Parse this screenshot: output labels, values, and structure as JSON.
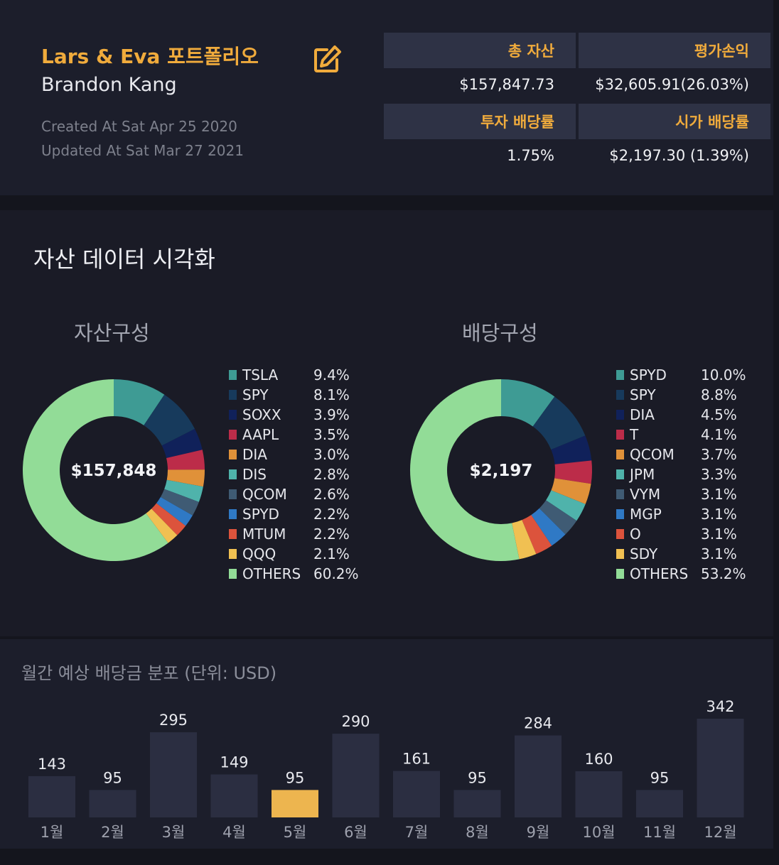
{
  "header": {
    "title": "Lars & Eva 포트폴리오",
    "owner": "Brandon Kang",
    "created": "Created At Sat Apr 25 2020",
    "updated": "Updated At Sat Mar 27 2021",
    "edit_icon": "edit-icon"
  },
  "stats": {
    "total_assets_label": "총 자산",
    "total_assets_value": "$157,847.73",
    "pnl_label": "평가손익",
    "pnl_value": "$32,605.91(26.03%)",
    "invest_div_label": "투자 배당률",
    "invest_div_value": "1.75%",
    "market_div_label": "시가 배당률",
    "market_div_value": "$2,197.30 (1.39%)"
  },
  "section_title": "자산 데이터 시각화",
  "colors": {
    "accent": "#f0ab3c",
    "palette": [
      "#3e9b94",
      "#173a5c",
      "#10215a",
      "#bc2c49",
      "#e09139",
      "#4fb3ab",
      "#3f5b74",
      "#2f79c5",
      "#dc533c",
      "#f0c052",
      "#92dc97"
    ]
  },
  "chart_data": [
    {
      "type": "pie",
      "title": "자산구성",
      "center_label": "$157,848",
      "labels": [
        "TSLA",
        "SPY",
        "SOXX",
        "AAPL",
        "DIA",
        "DIS",
        "QCOM",
        "SPYD",
        "MTUM",
        "QQQ",
        "OTHERS"
      ],
      "values": [
        9.4,
        8.1,
        3.9,
        3.5,
        3.0,
        2.8,
        2.6,
        2.2,
        2.2,
        2.1,
        60.2
      ],
      "value_labels": [
        "9.4%",
        "8.1%",
        "3.9%",
        "3.5%",
        "3.0%",
        "2.8%",
        "2.6%",
        "2.2%",
        "2.2%",
        "2.1%",
        "60.2%"
      ]
    },
    {
      "type": "pie",
      "title": "배당구성",
      "center_label": "$2,197",
      "labels": [
        "SPYD",
        "SPY",
        "DIA",
        "T",
        "QCOM",
        "JPM",
        "VYM",
        "MGP",
        "O",
        "SDY",
        "OTHERS"
      ],
      "values": [
        10.0,
        8.8,
        4.5,
        4.1,
        3.7,
        3.3,
        3.1,
        3.1,
        3.1,
        3.1,
        53.2
      ],
      "value_labels": [
        "10.0%",
        "8.8%",
        "4.5%",
        "4.1%",
        "3.7%",
        "3.3%",
        "3.1%",
        "3.1%",
        "3.1%",
        "3.1%",
        "53.2%"
      ]
    },
    {
      "type": "bar",
      "title": "월간 예상 배당금 분포 (단위: USD)",
      "categories": [
        "1월",
        "2월",
        "3월",
        "4월",
        "5월",
        "6월",
        "7월",
        "8월",
        "9월",
        "10월",
        "11월",
        "12월"
      ],
      "values": [
        143,
        95,
        295,
        149,
        95,
        290,
        161,
        95,
        284,
        160,
        95,
        342
      ],
      "highlight_index": 4,
      "bar_color": "#2b2e41",
      "highlight_color": "#edb54f"
    }
  ]
}
